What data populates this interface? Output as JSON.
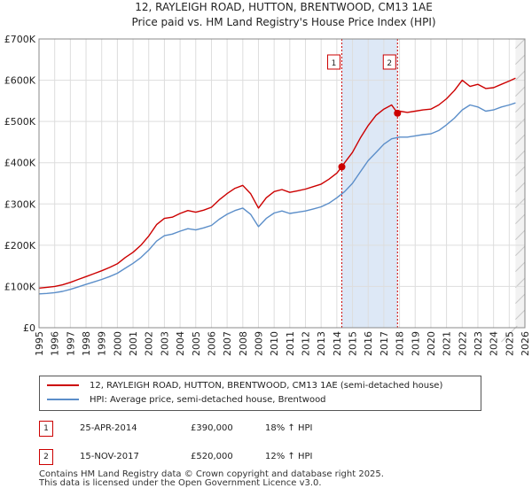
{
  "chart_data": {
    "type": "line",
    "title": "12, RAYLEIGH ROAD, HUTTON, BRENTWOOD, CM13 1AE",
    "subtitle": "Price paid vs. HM Land Registry's House Price Index (HPI)",
    "xlabel": "",
    "ylabel": "",
    "xlim": [
      1995,
      2026
    ],
    "ylim": [
      0,
      700000
    ],
    "y_ticks": [
      0,
      100000,
      200000,
      300000,
      400000,
      500000,
      600000,
      700000
    ],
    "y_tick_labels": [
      "£0",
      "£100K",
      "£200K",
      "£300K",
      "£400K",
      "£500K",
      "£600K",
      "£700K"
    ],
    "x_ticks": [
      1995,
      1996,
      1997,
      1998,
      1999,
      2000,
      2001,
      2002,
      2003,
      2004,
      2005,
      2006,
      2007,
      2008,
      2009,
      2010,
      2011,
      2012,
      2013,
      2014,
      2015,
      2016,
      2017,
      2018,
      2019,
      2020,
      2021,
      2022,
      2023,
      2024,
      2025,
      2026
    ],
    "x_tick_labels": [
      "1995",
      "1996",
      "1997",
      "1998",
      "1999",
      "2000",
      "2001",
      "2002",
      "2003",
      "2004",
      "2005",
      "2006",
      "2007",
      "2008",
      "2009",
      "2010",
      "2011",
      "2012",
      "2013",
      "2014",
      "2015",
      "2016",
      "2017",
      "2018",
      "2019",
      "2020",
      "2021",
      "2022",
      "2023",
      "2024",
      "2025",
      "2026"
    ],
    "grid": true,
    "highlight_span": [
      2014.32,
      2017.87
    ],
    "future_start": 2025.4,
    "series": [
      {
        "name": "12, RAYLEIGH ROAD, HUTTON, BRENTWOOD, CM13 1AE (semi-detached house)",
        "color": "#cc0000",
        "x": [
          1995.0,
          1995.5,
          1996.0,
          1996.5,
          1997.0,
          1997.5,
          1998.0,
          1998.5,
          1999.0,
          1999.5,
          2000.0,
          2000.5,
          2001.0,
          2001.5,
          2002.0,
          2002.5,
          2003.0,
          2003.5,
          2004.0,
          2004.5,
          2005.0,
          2005.5,
          2006.0,
          2006.5,
          2007.0,
          2007.5,
          2008.0,
          2008.5,
          2009.0,
          2009.5,
          2010.0,
          2010.5,
          2011.0,
          2011.5,
          2012.0,
          2012.5,
          2013.0,
          2013.5,
          2014.0,
          2014.32,
          2014.5,
          2015.0,
          2015.5,
          2016.0,
          2016.5,
          2017.0,
          2017.5,
          2017.87,
          2018.0,
          2018.5,
          2019.0,
          2019.5,
          2020.0,
          2020.5,
          2021.0,
          2021.5,
          2022.0,
          2022.5,
          2023.0,
          2023.5,
          2024.0,
          2024.5,
          2025.0,
          2025.4
        ],
        "values": [
          96000,
          98000,
          100000,
          104000,
          110000,
          117000,
          124000,
          131000,
          138000,
          146000,
          155000,
          170000,
          183000,
          200000,
          222000,
          250000,
          265000,
          268000,
          277000,
          284000,
          280000,
          285000,
          292000,
          310000,
          325000,
          338000,
          345000,
          325000,
          290000,
          315000,
          330000,
          335000,
          328000,
          332000,
          336000,
          342000,
          348000,
          360000,
          375000,
          390000,
          400000,
          425000,
          460000,
          490000,
          515000,
          530000,
          540000,
          520000,
          525000,
          522000,
          525000,
          528000,
          530000,
          540000,
          555000,
          575000,
          600000,
          585000,
          590000,
          580000,
          582000,
          590000,
          598000,
          605000
        ]
      },
      {
        "name": "HPI: Average price, semi-detached house, Brentwood",
        "color": "#5b8ec9",
        "x": [
          1995.0,
          1995.5,
          1996.0,
          1996.5,
          1997.0,
          1997.5,
          1998.0,
          1998.5,
          1999.0,
          1999.5,
          2000.0,
          2000.5,
          2001.0,
          2001.5,
          2002.0,
          2002.5,
          2003.0,
          2003.5,
          2004.0,
          2004.5,
          2005.0,
          2005.5,
          2006.0,
          2006.5,
          2007.0,
          2007.5,
          2008.0,
          2008.5,
          2009.0,
          2009.5,
          2010.0,
          2010.5,
          2011.0,
          2011.5,
          2012.0,
          2012.5,
          2013.0,
          2013.5,
          2014.0,
          2014.5,
          2015.0,
          2015.5,
          2016.0,
          2016.5,
          2017.0,
          2017.5,
          2018.0,
          2018.5,
          2019.0,
          2019.5,
          2020.0,
          2020.5,
          2021.0,
          2021.5,
          2022.0,
          2022.5,
          2023.0,
          2023.5,
          2024.0,
          2024.5,
          2025.0,
          2025.4
        ],
        "values": [
          82000,
          83000,
          85000,
          88000,
          93000,
          99000,
          105000,
          111000,
          117000,
          124000,
          132000,
          144000,
          156000,
          170000,
          188000,
          210000,
          223000,
          227000,
          234000,
          240000,
          237000,
          242000,
          248000,
          263000,
          275000,
          284000,
          290000,
          275000,
          245000,
          265000,
          278000,
          283000,
          277000,
          280000,
          283000,
          288000,
          293000,
          302000,
          315000,
          330000,
          350000,
          378000,
          405000,
          425000,
          445000,
          458000,
          462000,
          462000,
          465000,
          468000,
          470000,
          478000,
          492000,
          508000,
          528000,
          540000,
          535000,
          525000,
          528000,
          535000,
          540000,
          545000
        ]
      }
    ],
    "markers": [
      {
        "label": "1",
        "x": 2014.32,
        "value": 390000
      },
      {
        "label": "2",
        "x": 2017.87,
        "value": 520000
      }
    ]
  },
  "legend": [
    {
      "label": "12, RAYLEIGH ROAD, HUTTON, BRENTWOOD, CM13 1AE (semi-detached house)",
      "color": "#cc0000"
    },
    {
      "label": "HPI: Average price, semi-detached house, Brentwood",
      "color": "#5b8ec9"
    }
  ],
  "sales": [
    {
      "num": "1",
      "date": "25-APR-2014",
      "price": "£390,000",
      "hpi": "18% ↑ HPI"
    },
    {
      "num": "2",
      "date": "15-NOV-2017",
      "price": "£520,000",
      "hpi": "12% ↑ HPI"
    }
  ],
  "footer": {
    "line1": "Contains HM Land Registry data © Crown copyright and database right 2025.",
    "line2": "This data is licensed under the Open Government Licence v3.0."
  }
}
